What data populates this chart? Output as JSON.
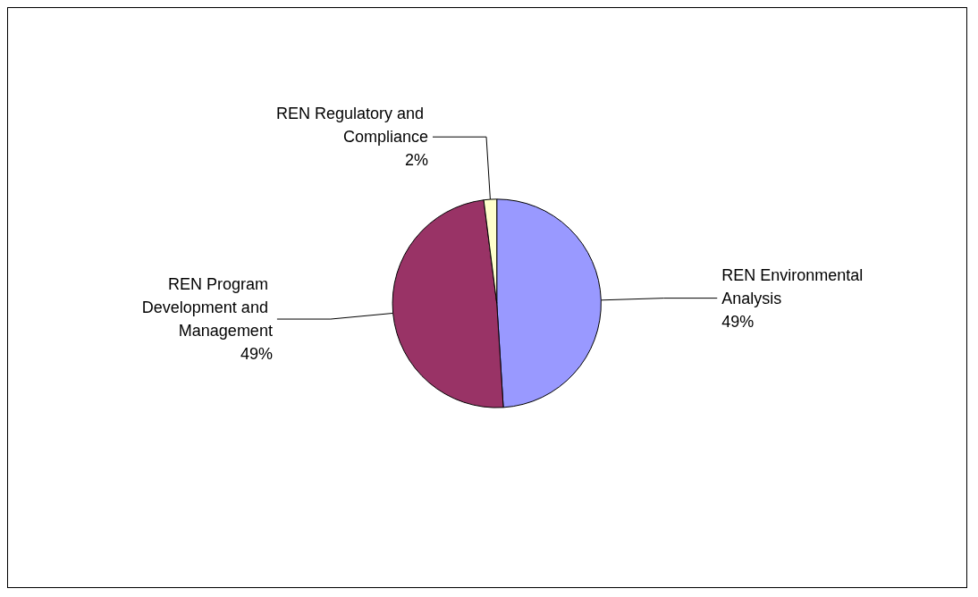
{
  "chart_data": {
    "type": "pie",
    "categories": [
      "REN Environmental Analysis",
      "REN Program Development and Management",
      "REN Regulatory and Compliance"
    ],
    "values": [
      49,
      49,
      2
    ],
    "value_labels": [
      "49%",
      "49%",
      "2%"
    ],
    "colors": [
      "#9999ff",
      "#993366",
      "#ffffcc"
    ],
    "legend": false
  }
}
